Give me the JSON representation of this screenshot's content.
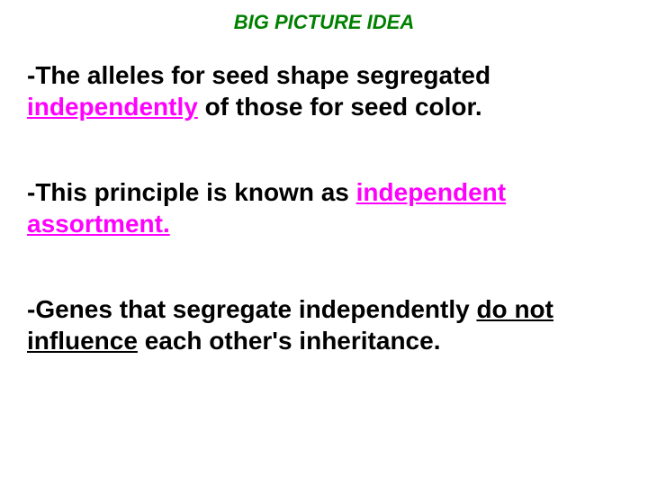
{
  "title": {
    "text": "BIG PICTURE IDEA",
    "color": "#008000",
    "fontsize": 22
  },
  "bullets": {
    "fontsize": 28,
    "color": "#000000",
    "underline_color": "#ff00ff",
    "items": [
      {
        "prefix": "-The alleles for seed shape segregated ",
        "underlined": "independently",
        "underlined_magenta": true,
        "suffix": " of those for seed color."
      },
      {
        "prefix": "-This principle is known as ",
        "underlined": "independent assortment.",
        "underlined_magenta": true,
        "suffix": ""
      },
      {
        "prefix": "-Genes that segregate independently ",
        "underlined": "do not influence",
        "underlined_magenta": false,
        "suffix": " each other's inheritance."
      }
    ]
  },
  "background_color": "#ffffff"
}
